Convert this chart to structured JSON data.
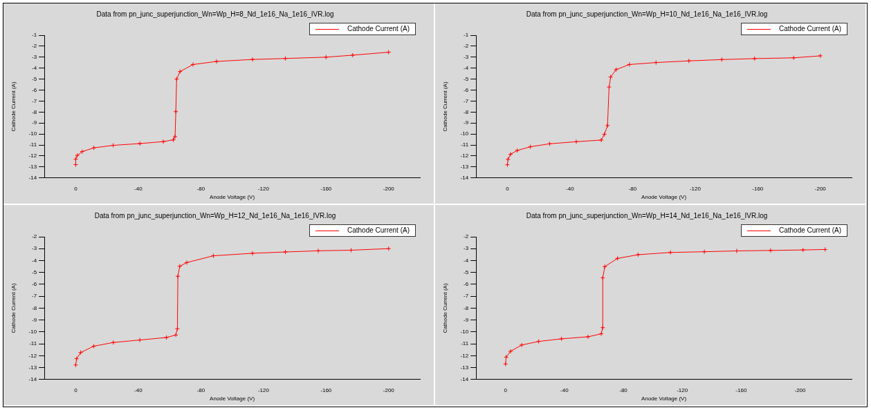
{
  "chart_data": [
    {
      "type": "line",
      "title": "Data from pn_junc_superjunction_Wn=Wp_H=8_Nd_1e16_Na_1e16_IVR.log",
      "xlabel": "Anode Voltage (V)",
      "ylabel": "Cathode Current (A)",
      "xlim": [
        20,
        -220
      ],
      "xticks": [
        0,
        -40,
        -80,
        -120,
        -160,
        -200
      ],
      "ylim": [
        -14,
        -1
      ],
      "yticks": [
        -1,
        -2,
        -3,
        -4,
        -5,
        -6,
        -7,
        -8,
        -9,
        -10,
        -11,
        -12,
        -13,
        -14
      ],
      "legend": "top right",
      "marker": "cross",
      "grid": false,
      "series": [
        {
          "name": "Cathode Current (A)",
          "color": "#ff0000",
          "x": [
            0,
            0,
            -1,
            -4.2,
            -11.6,
            -24,
            -41,
            -56,
            -62.4,
            -63.5,
            -64,
            -64.5,
            -66.7,
            -75,
            -90,
            -113,
            -134,
            -160,
            -177,
            -200
          ],
          "values": [
            -12.79,
            -12.29,
            -11.95,
            -11.6,
            -11.26,
            -11.03,
            -10.87,
            -10.69,
            -10.53,
            -10.24,
            -7.96,
            -4.99,
            -4.31,
            -3.67,
            -3.39,
            -3.21,
            -3.12,
            -3.0,
            -2.82,
            -2.55
          ]
        }
      ]
    },
    {
      "type": "line",
      "title": "Data from pn_junc_superjunction_Wn=Wp_H=10_Nd_1e16_Na_1e16_IVR.log",
      "xlabel": "Anode Voltage (V)",
      "ylabel": "Cathode Current (A)",
      "xlim": [
        20,
        -220
      ],
      "xticks": [
        0,
        -40,
        -80,
        -120,
        -160,
        -200
      ],
      "ylim": [
        -14,
        -1
      ],
      "yticks": [
        -1,
        -2,
        -3,
        -4,
        -5,
        -6,
        -7,
        -8,
        -9,
        -10,
        -11,
        -12,
        -13,
        -14
      ],
      "legend": "top right",
      "marker": "cross",
      "grid": false,
      "series": [
        {
          "name": "Cathode Current (A)",
          "color": "#ff0000",
          "x": [
            0,
            -0.4,
            -2,
            -6.3,
            -14.7,
            -27,
            -44,
            -60,
            -62,
            -64,
            -65,
            -66,
            -69.5,
            -78,
            -95,
            -116,
            -137,
            -158,
            -183,
            -200
          ],
          "values": [
            -12.8,
            -12.3,
            -11.84,
            -11.5,
            -11.16,
            -10.89,
            -10.7,
            -10.55,
            -10.03,
            -9.23,
            -5.72,
            -4.81,
            -4.13,
            -3.67,
            -3.49,
            -3.34,
            -3.22,
            -3.13,
            -3.06,
            -2.88
          ]
        }
      ]
    },
    {
      "type": "line",
      "title": "Data from pn_junc_superjunction_Wn=Wp_H=12_Nd_1e16_Na_1e16_IVR.log",
      "xlabel": "Anode Voltage (V)",
      "ylabel": "Cathode Current (A)",
      "xlim": [
        20,
        -220
      ],
      "xticks": [
        0,
        -40,
        -80,
        -120,
        -160,
        -200
      ],
      "ylim": [
        -14,
        -2
      ],
      "yticks": [
        -2,
        -3,
        -4,
        -5,
        -6,
        -7,
        -8,
        -9,
        -10,
        -11,
        -12,
        -13,
        -14
      ],
      "legend": "top right",
      "marker": "cross",
      "grid": false,
      "series": [
        {
          "name": "Cathode Current (A)",
          "color": "#ff0000",
          "x": [
            0,
            -0.6,
            -3.2,
            -11.6,
            -24,
            -41,
            -58,
            -64,
            -65,
            -65.3,
            -66.5,
            -71,
            -88,
            -113,
            -134,
            -155,
            -176,
            -200
          ],
          "values": [
            -12.78,
            -12.25,
            -11.73,
            -11.2,
            -10.89,
            -10.68,
            -10.47,
            -10.26,
            -9.73,
            -5.32,
            -4.48,
            -4.17,
            -3.6,
            -3.39,
            -3.28,
            -3.18,
            -3.13,
            -3.0
          ]
        }
      ]
    },
    {
      "type": "line",
      "title": "Data from pn_junc_superjunction_Wn=Wp_H=14_Nd_1e16_Na_1e16_IVR.log",
      "xlabel": "Anode Voltage (V)",
      "ylabel": "Cathode Current (A)",
      "xlim": [
        20,
        -235
      ],
      "xticks": [
        0,
        -40,
        -80,
        -120,
        -160,
        -200
      ],
      "ylim": [
        -14,
        -2
      ],
      "yticks": [
        -2,
        -3,
        -4,
        -5,
        -6,
        -7,
        -8,
        -9,
        -10,
        -11,
        -12,
        -13,
        -14
      ],
      "legend": "top right",
      "marker": "cross",
      "grid": false,
      "series": [
        {
          "name": "Cathode Current (A)",
          "color": "#ff0000",
          "x": [
            0,
            -0.4,
            -3.4,
            -11,
            -22.5,
            -38,
            -56,
            -65,
            -66,
            -66,
            -67.4,
            -76,
            -90,
            -112,
            -135,
            -157,
            -180,
            -202,
            -217
          ],
          "values": [
            -12.7,
            -12.12,
            -11.63,
            -11.1,
            -10.8,
            -10.58,
            -10.41,
            -10.16,
            -9.64,
            -5.45,
            -4.51,
            -3.82,
            -3.51,
            -3.32,
            -3.26,
            -3.19,
            -3.15,
            -3.11,
            -3.07
          ]
        }
      ]
    }
  ]
}
